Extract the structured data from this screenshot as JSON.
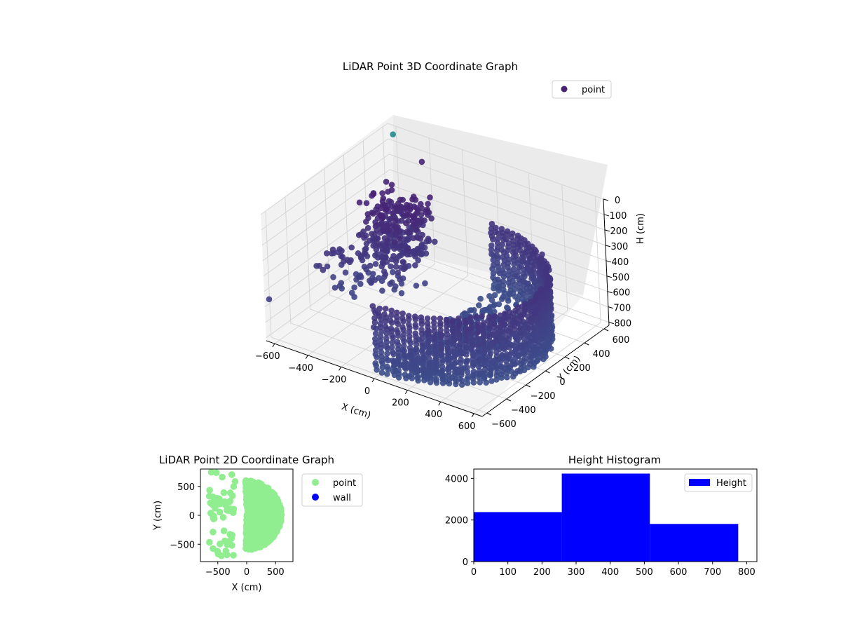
{
  "chart_data": [
    {
      "type": "scatter",
      "title": "LiDAR Point 3D Coordinate Graph",
      "xlabel": "X (cm)",
      "ylabel": "Y (cm)",
      "zlabel": "H (cm)",
      "x_ticks": [
        "−600",
        "−400",
        "−200",
        "0",
        "200",
        "400",
        "600"
      ],
      "y_ticks": [
        "600",
        "400",
        "200",
        "0",
        "−200",
        "−400",
        "−600"
      ],
      "z_ticks": [
        "0",
        "100",
        "200",
        "300",
        "400",
        "500",
        "600",
        "700",
        "800"
      ],
      "xlim": [
        -650,
        650
      ],
      "ylim": [
        -650,
        650
      ],
      "zlim": [
        0,
        820
      ],
      "z_inverted": true,
      "legend": {
        "label": "point",
        "color": "#482173",
        "placement": "upper-right"
      },
      "colormap": "viridis",
      "grid": true,
      "shape": {
        "main_arc": {
          "radius": 600,
          "angle_range_deg": [
            -92,
            92
          ],
          "center": [
            0,
            0
          ]
        },
        "arc_height_range": [
          380,
          820
        ],
        "inner_cluster": {
          "x_range": [
            -450,
            -150
          ],
          "y_range": [
            -50,
            300
          ],
          "height_range": [
            120,
            500
          ]
        },
        "outliers": [
          {
            "x": -620,
            "y": 650,
            "h": 60
          },
          {
            "x": -420,
            "y": 600,
            "h": 140
          },
          {
            "x": -640,
            "y": -620,
            "h": 560
          },
          {
            "x": -600,
            "y": -200,
            "h": 520
          }
        ]
      }
    },
    {
      "type": "scatter",
      "title": "LiDAR Point 2D Coordinate Graph",
      "xlabel": "X (cm)",
      "ylabel": "Y (cm)",
      "x_ticks": [
        "−500",
        "0",
        "500"
      ],
      "y_ticks": [
        "500",
        "0",
        "−500"
      ],
      "xlim": [
        -800,
        800
      ],
      "ylim": [
        -800,
        800
      ],
      "legend": {
        "placement": "outside-right"
      },
      "series": [
        {
          "name": "point",
          "color": "#90ee90"
        },
        {
          "name": "wall",
          "color": "#0000ff"
        }
      ],
      "shape": {
        "radius": 600,
        "left_edge_x": -200,
        "scattered_left_x": [
          -650,
          -200
        ]
      }
    },
    {
      "type": "bar",
      "title": "Height Histogram",
      "x_ticks": [
        "0",
        "100",
        "200",
        "300",
        "400",
        "500",
        "600",
        "700",
        "800"
      ],
      "y_ticks": [
        "0",
        "2000",
        "4000"
      ],
      "xlim": [
        0,
        830
      ],
      "ylim": [
        0,
        4450
      ],
      "bins": [
        {
          "start": 0,
          "end": 258,
          "count": 2380
        },
        {
          "start": 258,
          "end": 516,
          "count": 4230
        },
        {
          "start": 516,
          "end": 775,
          "count": 1810
        }
      ],
      "legend": {
        "label": "Height",
        "color": "#0000ff",
        "placement": "upper-right"
      }
    }
  ]
}
